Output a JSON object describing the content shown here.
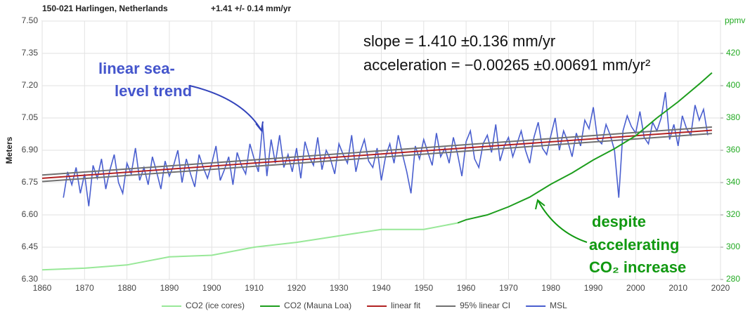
{
  "chart_data": {
    "type": "line",
    "title": "150-021 Harlingen, Netherlands",
    "subtitle": "+1.41 +/- 0.14 mm/yr",
    "ylabel": "Meters",
    "y2label": "ppmv",
    "annotations": {
      "stats": [
        "slope = 1.410 ±0.136 mm/yr",
        "acceleration = −0.00265 ±0.00691 mm/yr²"
      ],
      "trend": [
        "linear sea-",
        "level trend"
      ],
      "co2": [
        "despite",
        "accelerating",
        "CO₂ increase"
      ]
    },
    "xlim": [
      1860,
      2020
    ],
    "xticks": [
      1860,
      1870,
      1880,
      1890,
      1900,
      1910,
      1920,
      1930,
      1940,
      1950,
      1960,
      1970,
      1980,
      1990,
      2000,
      2010,
      2020
    ],
    "ylim": [
      6.3,
      7.5
    ],
    "yticks": [
      {
        "value": 6.3,
        "label": "6.30"
      },
      6.45,
      {
        "value": 6.6,
        "label": "6.60"
      },
      6.75,
      {
        "value": 6.9,
        "label": "6.90"
      },
      7.05,
      {
        "value": 7.2,
        "label": "7.20"
      },
      7.35,
      {
        "value": 7.5,
        "label": "7.50"
      }
    ],
    "y2lim": [
      280,
      440
    ],
    "y2ticks": [
      280,
      300,
      320,
      340,
      360,
      380,
      400,
      420
    ],
    "grid": true,
    "legend": "bottom",
    "series": [
      {
        "name": "CO2 (ice cores)",
        "color": "#98e898",
        "axis": "y2",
        "x": [
          1860,
          1870,
          1880,
          1890,
          1900,
          1910,
          1920,
          1930,
          1940,
          1950,
          1958
        ],
        "values": [
          286,
          287,
          289,
          294,
          295,
          300,
          303,
          307,
          311,
          311,
          315
        ]
      },
      {
        "name": "CO2 (Mauna Loa)",
        "color": "#1e9e1e",
        "axis": "y2",
        "x": [
          1958,
          1960,
          1965,
          1970,
          1975,
          1980,
          1985,
          1990,
          1995,
          2000,
          2005,
          2010,
          2015,
          2018
        ],
        "values": [
          315,
          317,
          320,
          325,
          331,
          339,
          346,
          354,
          361,
          369,
          380,
          390,
          401,
          408
        ]
      },
      {
        "name": "linear fit",
        "color": "#b22222",
        "x": [
          1860,
          2018
        ],
        "values": [
          6.77,
          6.993
        ]
      },
      {
        "name": "95% linear CI",
        "color": "#707070",
        "x": [
          1860,
          2018,
          null,
          1860,
          2018
        ],
        "values": [
          6.785,
          7.008,
          null,
          6.755,
          6.978
        ]
      },
      {
        "name": "MSL",
        "color": "#4a5fcf",
        "x": [
          1865,
          1866,
          1867,
          1868,
          1869,
          1870,
          1871,
          1872,
          1873,
          1874,
          1875,
          1876,
          1877,
          1878,
          1879,
          1880,
          1881,
          1882,
          1883,
          1884,
          1885,
          1886,
          1887,
          1888,
          1889,
          1890,
          1891,
          1892,
          1893,
          1894,
          1895,
          1896,
          1897,
          1898,
          1899,
          1900,
          1901,
          1902,
          1903,
          1904,
          1905,
          1906,
          1907,
          1908,
          1909,
          1910,
          1911,
          1912,
          1913,
          1914,
          1915,
          1916,
          1917,
          1918,
          1919,
          1920,
          1921,
          1922,
          1923,
          1924,
          1925,
          1926,
          1927,
          1928,
          1929,
          1930,
          1931,
          1932,
          1933,
          1934,
          1935,
          1936,
          1937,
          1938,
          1939,
          1940,
          1941,
          1942,
          1943,
          1944,
          1945,
          1946,
          1947,
          1948,
          1949,
          1950,
          1951,
          1952,
          1953,
          1954,
          1955,
          1956,
          1957,
          1958,
          1959,
          1960,
          1961,
          1962,
          1963,
          1964,
          1965,
          1966,
          1967,
          1968,
          1969,
          1970,
          1971,
          1972,
          1973,
          1974,
          1975,
          1976,
          1977,
          1978,
          1979,
          1980,
          1981,
          1982,
          1983,
          1984,
          1985,
          1986,
          1987,
          1988,
          1989,
          1990,
          1991,
          1992,
          1993,
          1994,
          1995,
          1996,
          1997,
          1998,
          1999,
          2000,
          2001,
          2002,
          2003,
          2004,
          2005,
          2006,
          2007,
          2008,
          2009,
          2010,
          2011,
          2012,
          2013,
          2014,
          2015,
          2016,
          2017
        ],
        "values": [
          6.68,
          6.8,
          6.74,
          6.82,
          6.7,
          6.79,
          6.64,
          6.83,
          6.77,
          6.86,
          6.72,
          6.81,
          6.88,
          6.75,
          6.7,
          6.84,
          6.79,
          6.91,
          6.76,
          6.82,
          6.74,
          6.87,
          6.8,
          6.72,
          6.85,
          6.78,
          6.83,
          6.9,
          6.75,
          6.86,
          6.79,
          6.73,
          6.88,
          6.82,
          6.77,
          6.84,
          6.92,
          6.76,
          6.81,
          6.87,
          6.74,
          6.89,
          6.83,
          6.79,
          6.93,
          6.86,
          6.8,
          7.02,
          6.78,
          6.95,
          6.84,
          6.97,
          6.82,
          6.88,
          6.8,
          6.91,
          6.77,
          6.94,
          6.87,
          6.83,
          6.96,
          6.81,
          6.9,
          6.86,
          6.79,
          6.93,
          6.88,
          6.84,
          6.97,
          6.8,
          6.89,
          6.95,
          6.85,
          6.82,
          6.91,
          6.76,
          6.87,
          6.93,
          6.84,
          6.97,
          6.88,
          6.8,
          6.7,
          6.92,
          6.86,
          6.95,
          6.89,
          6.83,
          6.98,
          6.87,
          6.91,
          6.84,
          6.96,
          6.88,
          6.78,
          6.94,
          6.99,
          6.86,
          6.82,
          6.93,
          6.97,
          6.89,
          7.02,
          6.85,
          6.92,
          6.96,
          6.87,
          6.93,
          6.99,
          6.9,
          6.84,
          6.96,
          7.03,
          6.91,
          6.88,
          6.97,
          7.05,
          6.9,
          6.99,
          6.94,
          6.87,
          6.98,
          6.92,
          7.04,
          7.0,
          7.1,
          6.95,
          6.93,
          7.02,
          6.97,
          6.9,
          6.68,
          6.99,
          7.06,
          7.01,
          6.98,
          7.08,
          6.96,
          6.93,
          7.03,
          6.99,
          7.05,
          7.17,
          6.95,
          7.02,
          6.92,
          7.06,
          7.0,
          6.97,
          7.11,
          7.04,
          7.09,
          6.97
        ]
      }
    ]
  }
}
